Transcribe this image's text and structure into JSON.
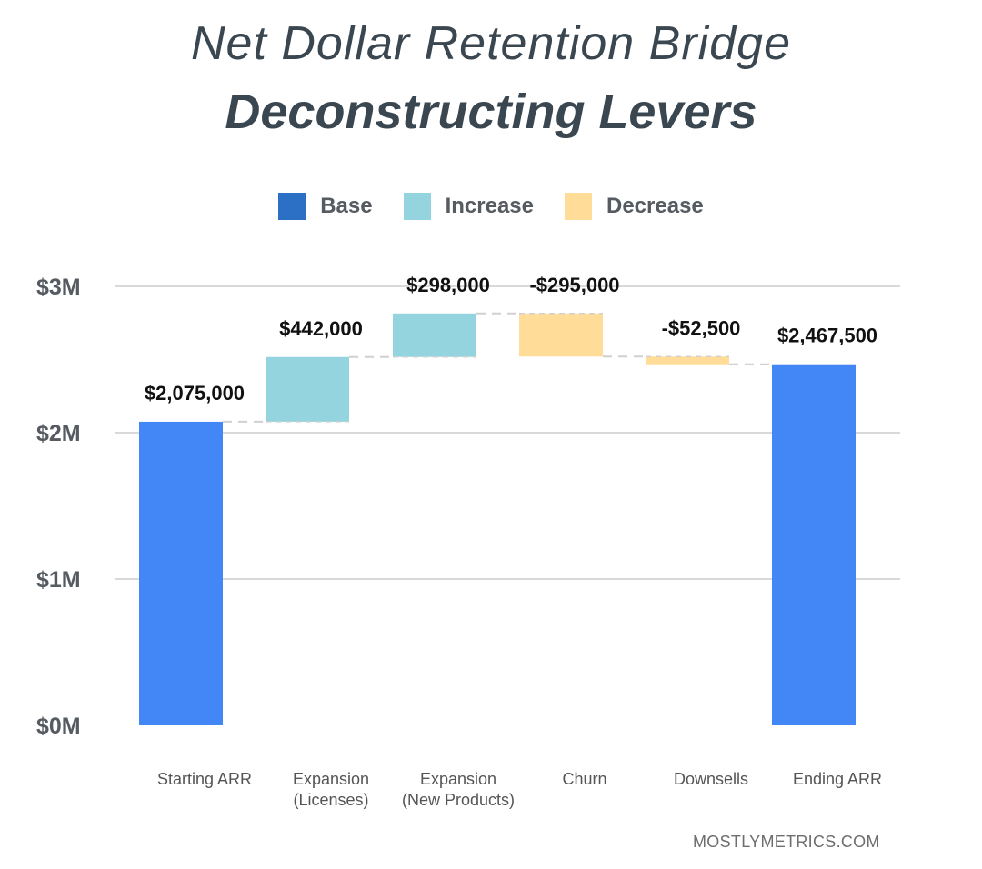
{
  "header": {
    "title": "Net Dollar Retention Bridge",
    "subtitle": "Deconstructing Levers"
  },
  "legend": [
    {
      "label": "Base",
      "color": "#2b70c4"
    },
    {
      "label": "Increase",
      "color": "#93d4de"
    },
    {
      "label": "Decrease",
      "color": "#ffdc97"
    }
  ],
  "footer": {
    "source": "MOSTLYMETRICS.COM"
  },
  "chart_data": {
    "type": "bar",
    "subtype": "waterfall",
    "title": "",
    "xlabel": "",
    "ylabel": "",
    "ylim": [
      0,
      3000000
    ],
    "yticks": [
      {
        "value": 0,
        "label": "$0M"
      },
      {
        "value": 1000000,
        "label": "$1M"
      },
      {
        "value": 2000000,
        "label": "$2M"
      },
      {
        "value": 3000000,
        "label": "$3M"
      }
    ],
    "grid": true,
    "legend_position": "top-center",
    "bars": [
      {
        "category": [
          "Starting ARR"
        ],
        "kind": "base",
        "start": 0,
        "end": 2075000,
        "label": "$2,075,000",
        "color": "#4287f5"
      },
      {
        "category": [
          "Expansion",
          "(Licenses)"
        ],
        "kind": "increase",
        "start": 2075000,
        "end": 2517000,
        "label": "$442,000",
        "color": "#93d4de"
      },
      {
        "category": [
          "Expansion",
          "(New Products)"
        ],
        "kind": "increase",
        "start": 2517000,
        "end": 2815000,
        "label": "$298,000",
        "color": "#93d4de"
      },
      {
        "category": [
          "Churn"
        ],
        "kind": "decrease",
        "start": 2815000,
        "end": 2520000,
        "label": "-$295,000",
        "color": "#ffdc97"
      },
      {
        "category": [
          "Downsells"
        ],
        "kind": "decrease",
        "start": 2520000,
        "end": 2467500,
        "label": "-$52,500",
        "color": "#ffdc97"
      },
      {
        "category": [
          "Ending ARR"
        ],
        "kind": "base",
        "start": 0,
        "end": 2467500,
        "label": "$2,467,500",
        "color": "#4287f5"
      }
    ]
  }
}
